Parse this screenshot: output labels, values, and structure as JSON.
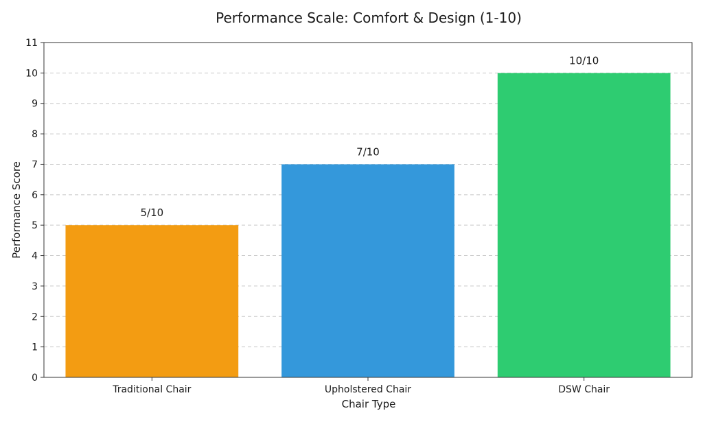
{
  "chart_data": {
    "type": "bar",
    "title": "Performance Scale: Comfort & Design (1-10)",
    "xlabel": "Chair Type",
    "ylabel": "Performance Score",
    "categories": [
      "Traditional Chair",
      "Upholstered Chair",
      "DSW Chair"
    ],
    "values": [
      5,
      7,
      10
    ],
    "data_labels": [
      "5/10",
      "7/10",
      "10/10"
    ],
    "colors": [
      "#f39c12",
      "#3498db",
      "#2ecc71"
    ],
    "ylim": [
      0,
      11
    ],
    "yticks": [
      0,
      1,
      2,
      3,
      4,
      5,
      6,
      7,
      8,
      9,
      10,
      11
    ],
    "grid": "y-dashed",
    "legend": "none"
  }
}
